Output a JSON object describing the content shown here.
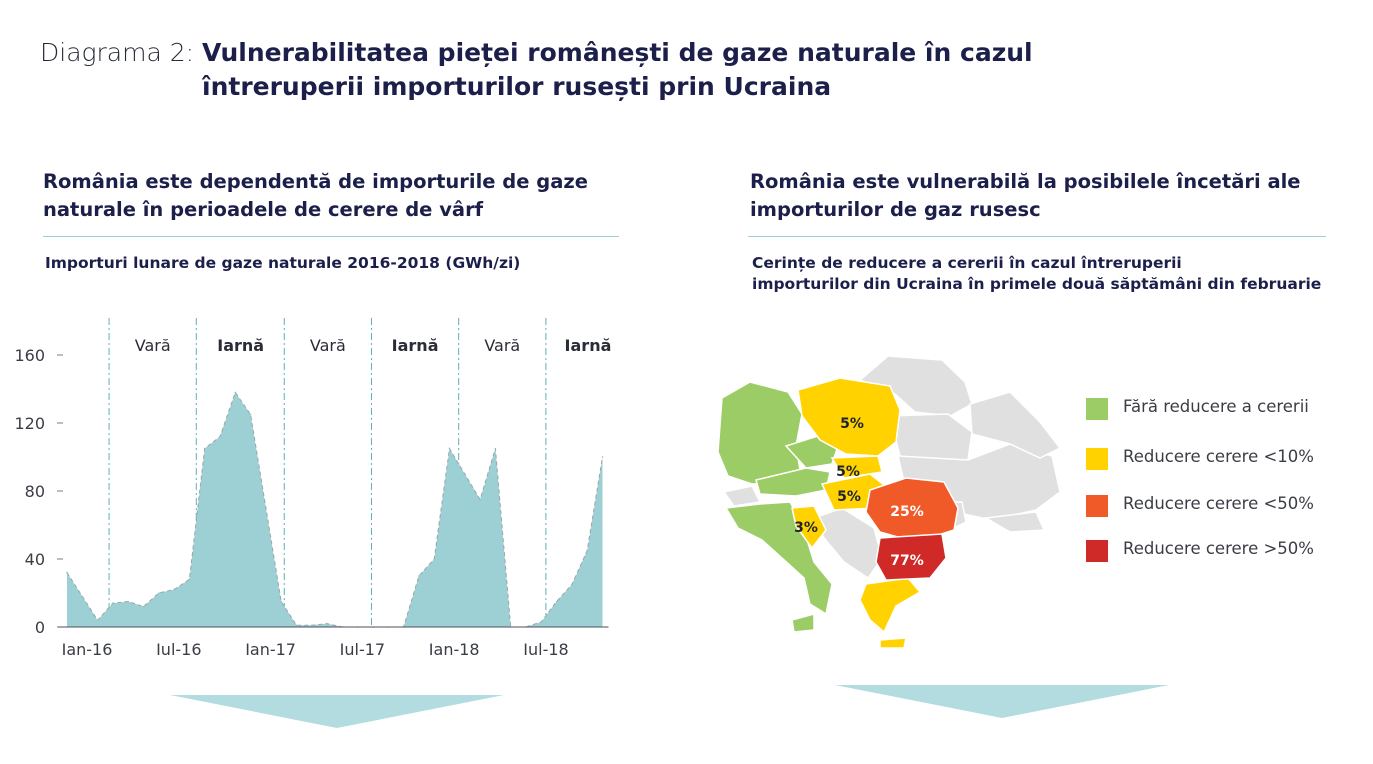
{
  "header": {
    "prefix": "Diagrama 2:",
    "title": "Vulnerabilitatea pieței românești de gaze naturale în cazul întreruperii importurilor rusești prin Ucraina"
  },
  "left": {
    "heading": "România este dependentă de importurile de gaze naturale în perioadele de cerere de vârf",
    "subtitle": "Importuri lunare de gaze naturale 2016-2018 (GWh/zi)"
  },
  "right": {
    "heading": "România este vulnerabilă la posibilele încetări ale importurilor de gaz rusesc",
    "subtitle_line1": "Cerințe de reducere a cererii în cazul întreruperii",
    "subtitle_line2": "importurilor din Ucraina în primele două săptămâni din februarie"
  },
  "chart_data": [
    {
      "type": "area",
      "title": "Importuri lunare de gaze naturale 2016-2018 (GWh/zi)",
      "x_tick_labels": [
        "Ian-16",
        "Iul-16",
        "Ian-17",
        "Iul-17",
        "Ian-18",
        "Iul-18"
      ],
      "y_ticks": [
        0,
        40,
        80,
        120,
        160
      ],
      "ylim": [
        0,
        170
      ],
      "x_months": [
        0,
        1,
        2,
        3,
        4,
        5,
        6,
        7,
        8,
        9,
        10,
        11,
        12,
        13,
        14,
        15,
        16,
        17,
        18,
        19,
        20,
        21,
        22,
        23,
        24,
        25,
        26,
        27,
        28,
        29,
        30,
        31,
        32,
        33,
        34,
        35
      ],
      "values": [
        32,
        18,
        4,
        14,
        15,
        12,
        20,
        22,
        28,
        105,
        112,
        138,
        125,
        70,
        15,
        1,
        1,
        2,
        0,
        0,
        0,
        0,
        0,
        30,
        40,
        105,
        90,
        75,
        105,
        0,
        0,
        3,
        15,
        25,
        45,
        100
      ],
      "season_labels": [
        "Vară",
        "Iarnă",
        "Vară",
        "Iarnă",
        "Vară",
        "Iarnă"
      ],
      "season_bold": [
        false,
        true,
        false,
        true,
        false,
        true
      ],
      "area_color": "#9dd0d4",
      "grid": false
    },
    {
      "type": "map",
      "annotations": [
        "5%",
        "5%",
        "5%",
        "25%",
        "3%",
        "77%"
      ],
      "legend": [
        {
          "label": "Fără reducere a cererii",
          "color": "#9ccc65"
        },
        {
          "label": "Reducere cerere <10%",
          "color": "#ffd200"
        },
        {
          "label": "Reducere cerere <50%",
          "color": "#f05a28"
        },
        {
          "label": "Reducere cerere >50%",
          "color": "#cf2a27"
        }
      ]
    }
  ]
}
